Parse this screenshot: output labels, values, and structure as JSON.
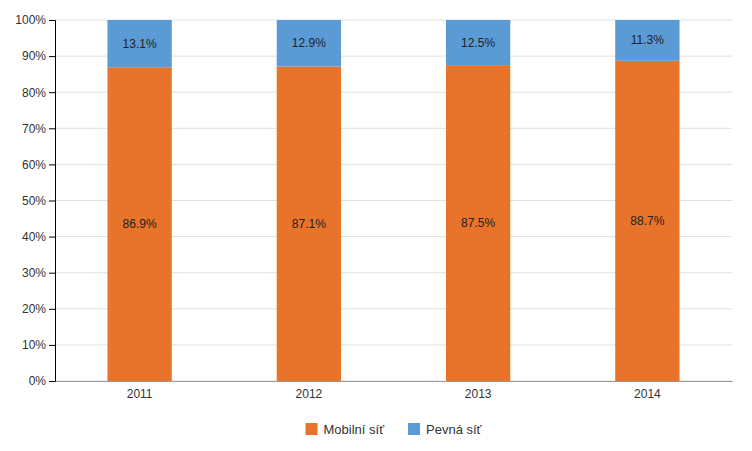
{
  "chart_data": {
    "type": "bar",
    "stacked": true,
    "categories": [
      "2011",
      "2012",
      "2013",
      "2014"
    ],
    "series": [
      {
        "name": "Mobilní síť",
        "color": "#E8732A",
        "values": [
          86.9,
          87.1,
          87.5,
          88.7
        ],
        "value_labels": [
          "86.9%",
          "87.1%",
          "87.5%",
          "88.7%"
        ]
      },
      {
        "name": "Pevná síť",
        "color": "#5B9BD5",
        "values": [
          13.1,
          12.9,
          12.5,
          11.3
        ],
        "value_labels": [
          "13.1%",
          "12.9%",
          "12.5%",
          "11.3%"
        ]
      }
    ],
    "ylim": [
      0,
      100
    ],
    "yticks": [
      {
        "value": 0,
        "label": "0%"
      },
      {
        "value": 10,
        "label": "10%"
      },
      {
        "value": 20,
        "label": "20%"
      },
      {
        "value": 30,
        "label": "30%"
      },
      {
        "value": 40,
        "label": "40%"
      },
      {
        "value": 50,
        "label": "50%"
      },
      {
        "value": 60,
        "label": "60%"
      },
      {
        "value": 70,
        "label": "70%"
      },
      {
        "value": 80,
        "label": "80%"
      },
      {
        "value": 90,
        "label": "90%"
      },
      {
        "value": 100,
        "label": "100%"
      }
    ],
    "grid": true,
    "legend": "bottom",
    "data_labels": true
  }
}
